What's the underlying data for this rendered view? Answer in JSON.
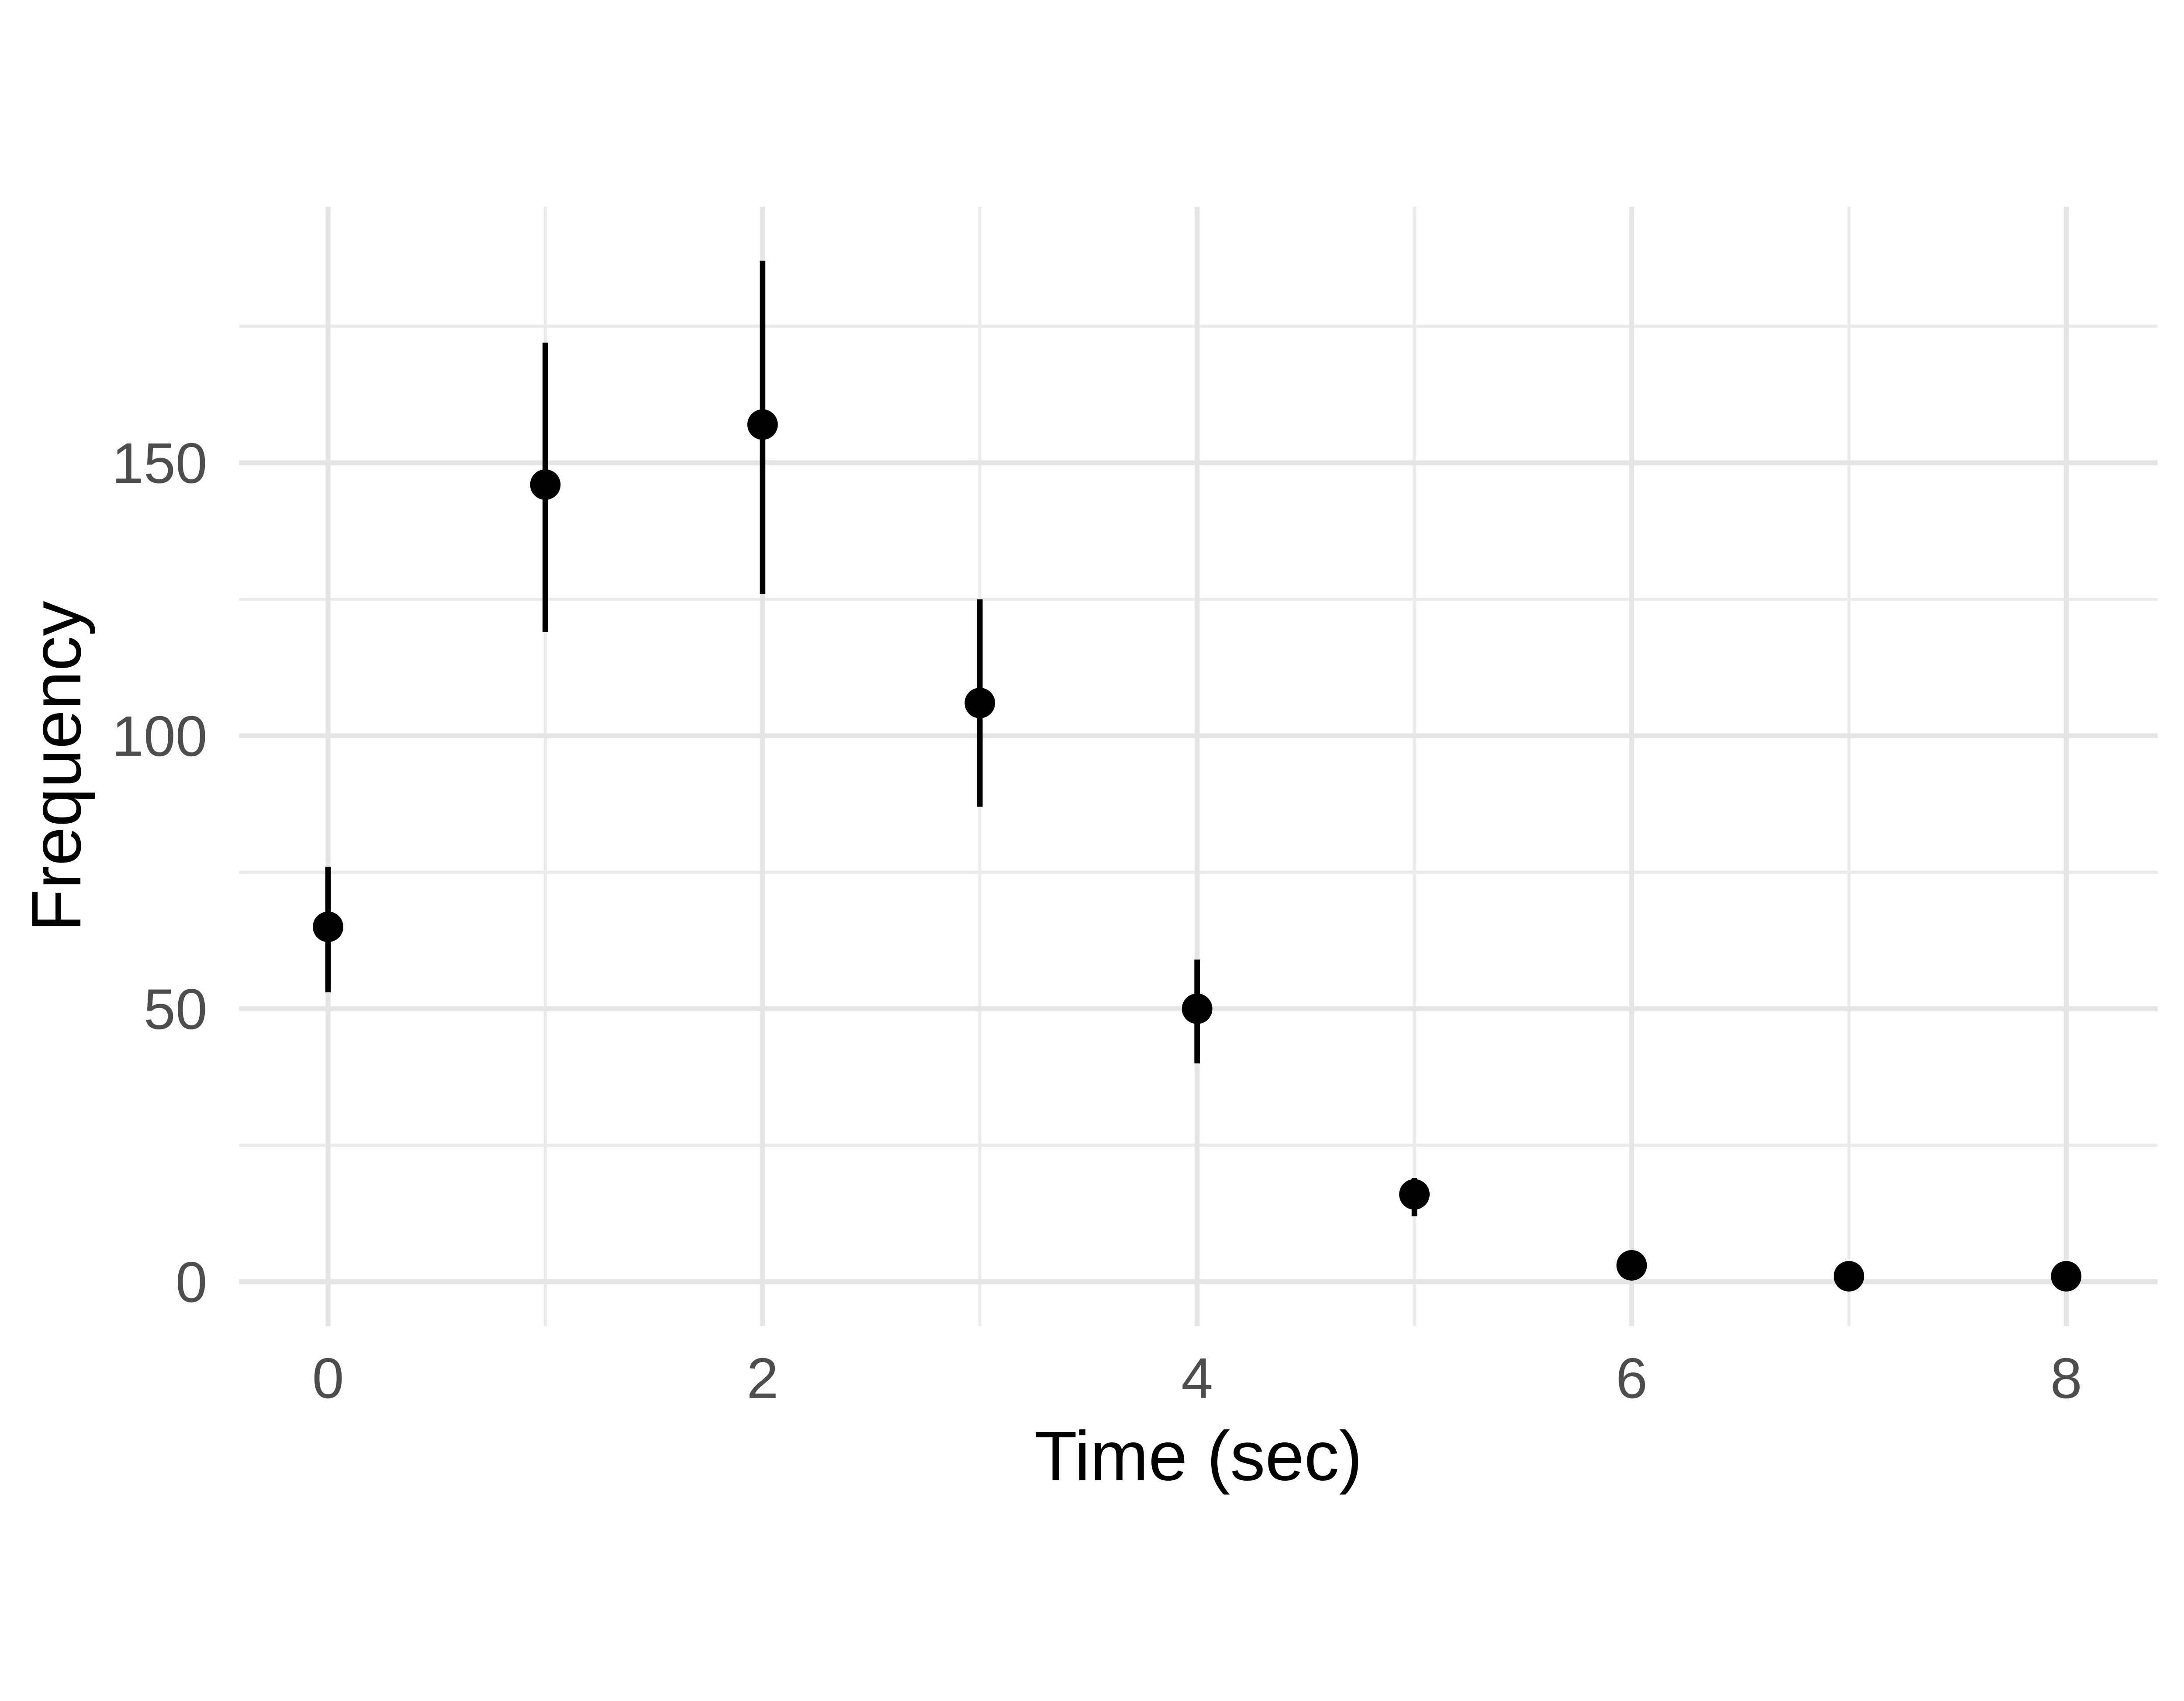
{
  "chart_data": {
    "type": "scatter",
    "subtype": "pointrange",
    "title": "",
    "xlabel": "Time (sec)",
    "ylabel": "Frequency",
    "x": [
      0,
      1,
      2,
      3,
      4,
      5,
      6,
      7,
      8
    ],
    "series": [
      {
        "name": "Frequency",
        "values": [
          65,
          146,
          157,
          106,
          50,
          16,
          3,
          1,
          1
        ],
        "ci_low": [
          53,
          119,
          126,
          87,
          40,
          12,
          3,
          1,
          1
        ],
        "ci_high": [
          76,
          172,
          187,
          125,
          59,
          19,
          3,
          1,
          1
        ]
      }
    ],
    "xlim": [
      -0.409,
      8.421
    ],
    "ylim": [
      -8.13,
      196.9
    ],
    "x_major_ticks": [
      0,
      2,
      4,
      6,
      8
    ],
    "x_minor_gridlines": [
      1,
      3,
      5,
      7
    ],
    "y_major_ticks": [
      0,
      50,
      100,
      150
    ],
    "y_minor_gridlines": [
      25,
      75,
      125,
      175
    ],
    "grid": true,
    "legend": false,
    "colors": {
      "background": "#ffffff",
      "grid_major": "#e5e5e5",
      "grid_minor": "#ebebeb",
      "point": "#000000",
      "error_bar": "#000000",
      "axis_text": "#4d4d4d",
      "axis_title": "#000000"
    }
  }
}
